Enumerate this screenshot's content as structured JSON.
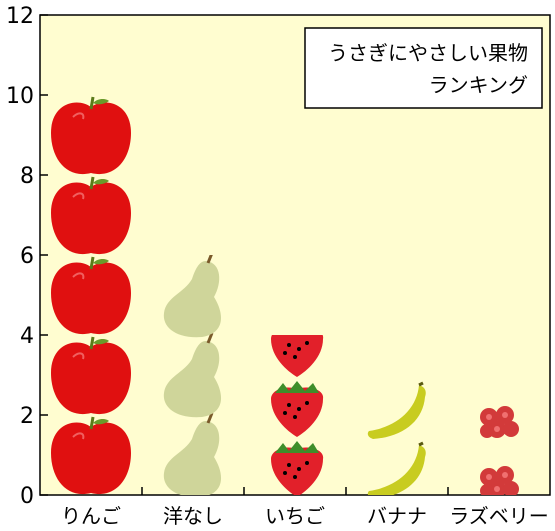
{
  "chart_data": {
    "type": "bar",
    "title_lines": [
      "うさぎにやさしい果物",
      "ランキング"
    ],
    "categories": [
      "りんご",
      "洋なし",
      "いちご",
      "バナナ",
      "ラズベリー"
    ],
    "values": [
      10,
      6,
      4,
      3,
      3
    ],
    "icons": [
      "apple-icon",
      "pear-icon",
      "strawberry-icon",
      "banana-icon",
      "raspberry-icon"
    ],
    "unit_per_icon": [
      2,
      2,
      1.5,
      1.5,
      1.5
    ],
    "ylim": [
      0,
      12
    ],
    "yticks": [
      "0",
      "2",
      "4",
      "6",
      "8",
      "10",
      "12"
    ],
    "xlabel": "",
    "ylabel": "",
    "grid": false,
    "legend": "none",
    "colors": {
      "background": "#FFFDD0",
      "apple": "#E01010",
      "pear": "#CFD59A",
      "strawberry": "#E2202A",
      "banana": "#C8CC20",
      "raspberry": "#D23A3A"
    }
  }
}
